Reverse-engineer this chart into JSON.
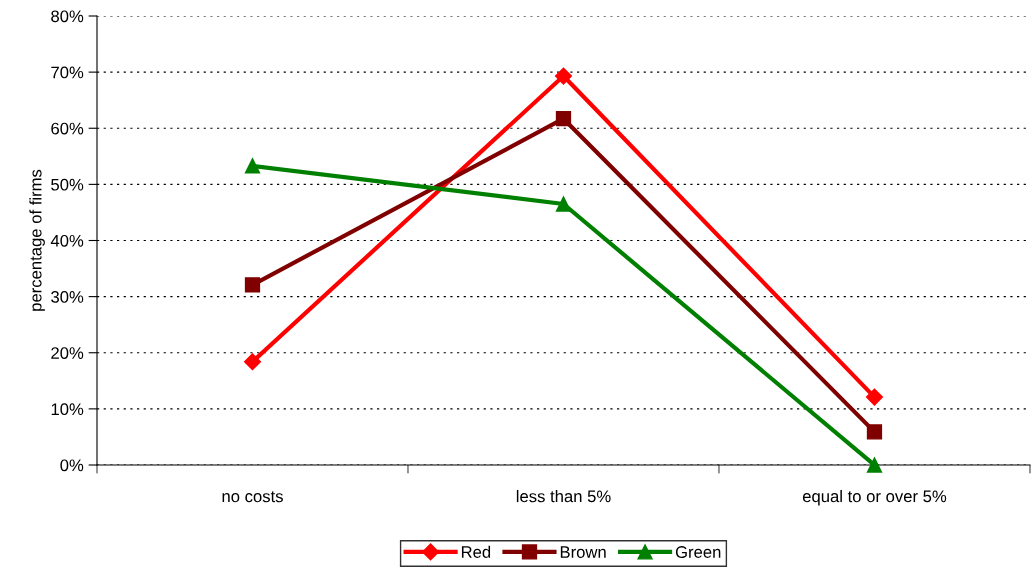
{
  "chart_data": {
    "type": "line",
    "ylabel": "percentage of firms",
    "categories": [
      "no costs",
      "less than 5%",
      "equal to or over 5%"
    ],
    "series": [
      {
        "name": "Red",
        "color": "#ff0000",
        "marker": "diamond",
        "values": [
          18.4,
          69.3,
          12.1
        ]
      },
      {
        "name": "Brown",
        "color": "#800000",
        "marker": "square",
        "values": [
          32.1,
          61.7,
          5.9
        ]
      },
      {
        "name": "Green",
        "color": "#008000",
        "marker": "triangle",
        "values": [
          53.3,
          46.5,
          0
        ]
      }
    ],
    "ylim": [
      0,
      80
    ],
    "yticks": [
      {
        "value": 0,
        "label": "0%"
      },
      {
        "value": 10,
        "label": "10%"
      },
      {
        "value": 20,
        "label": "20%"
      },
      {
        "value": 30,
        "label": "30%"
      },
      {
        "value": 40,
        "label": "40%"
      },
      {
        "value": 50,
        "label": "50%"
      },
      {
        "value": 60,
        "label": "60%"
      },
      {
        "value": 70,
        "label": "70%"
      },
      {
        "value": 80,
        "label": "80%"
      }
    ],
    "grid": "y",
    "legend": "bottom",
    "line_style": "solid"
  }
}
